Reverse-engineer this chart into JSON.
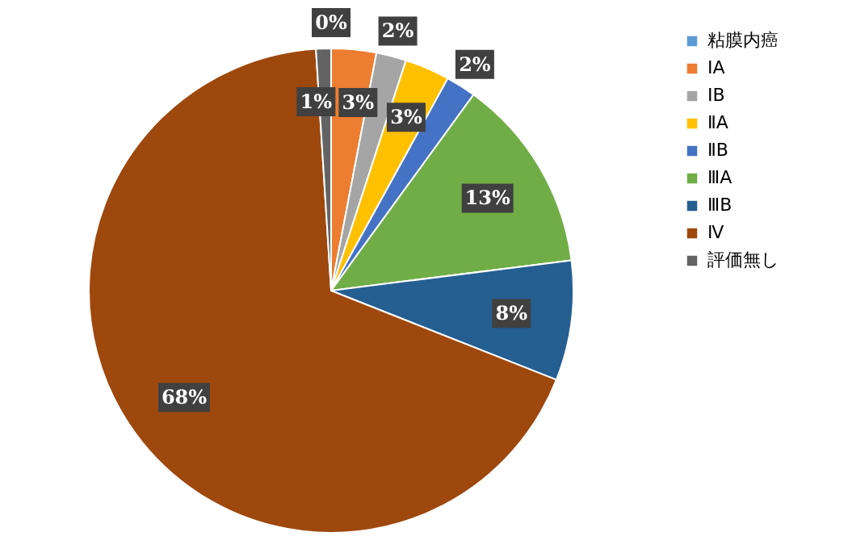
{
  "chart_data": {
    "type": "pie",
    "categories": [
      "粘膜内癌",
      "ⅠA",
      "ⅠB",
      "ⅡA",
      "ⅡB",
      "ⅢA",
      "ⅢB",
      "Ⅳ",
      "評価無し"
    ],
    "values": [
      0,
      3,
      2,
      3,
      2,
      13,
      8,
      68,
      1
    ],
    "value_labels": [
      "0%",
      "3%",
      "2%",
      "3%",
      "2%",
      "13%",
      "8%",
      "68%",
      "1%"
    ],
    "colors": [
      "#5b9bd5",
      "#ed7d31",
      "#a5a5a5",
      "#ffc000",
      "#4472c4",
      "#70ad47",
      "#255e91",
      "#9e480e",
      "#636363"
    ],
    "legend": "right"
  }
}
